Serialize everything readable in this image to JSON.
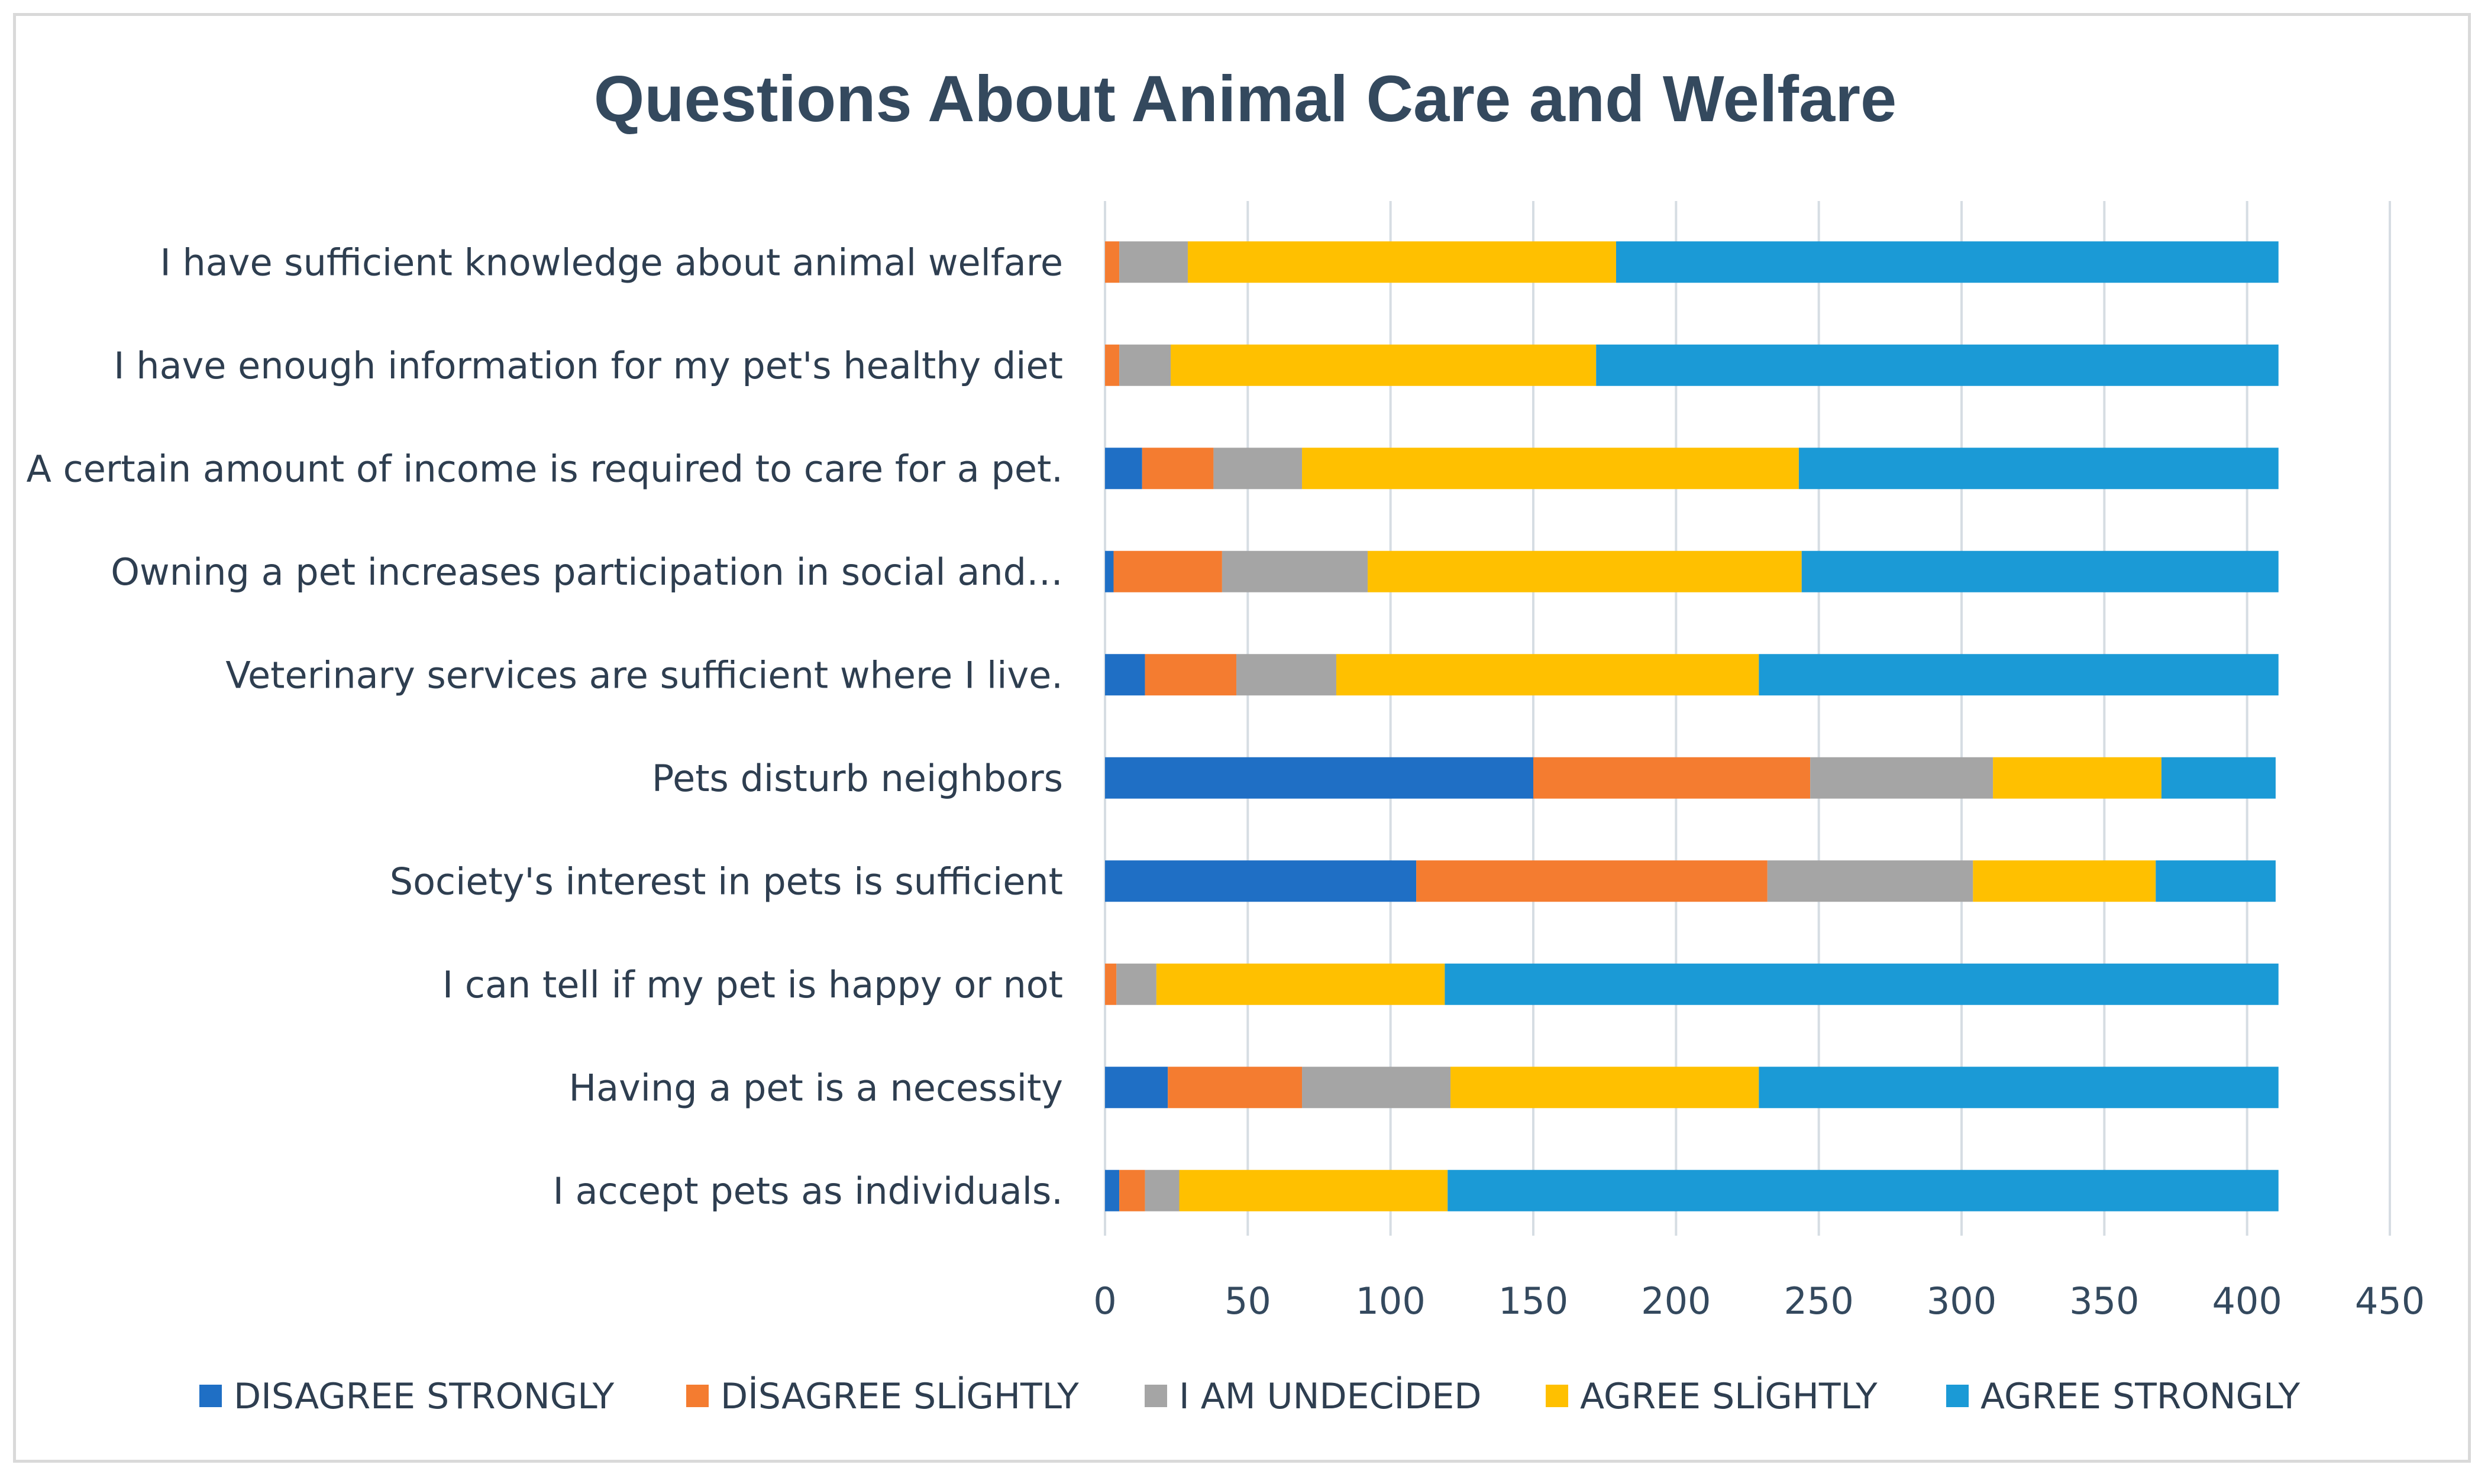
{
  "chart_data": {
    "type": "bar",
    "orientation": "horizontal",
    "stacked": true,
    "title": "Questions About Animal Care and Welfare",
    "xlabel": "",
    "ylabel": "",
    "xlim": [
      0,
      450
    ],
    "xticks": [
      0,
      50,
      100,
      150,
      200,
      250,
      300,
      350,
      400,
      450
    ],
    "grid": true,
    "legend_position": "bottom",
    "categories": [
      "I have sufficient knowledge about animal welfare",
      "I have enough information for my pet's healthy diet",
      "A certain amount of income is required to care for a pet.",
      "Owning a pet increases participation in social and…",
      "Veterinary services are sufficient where I live.",
      "Pets disturb neighbors",
      "Society's interest in pets is sufficient",
      "I can tell if my pet is happy or not",
      "Having a pet is a necessity",
      "I accept pets as individuals."
    ],
    "series": [
      {
        "name": "DISAGREE STRONGLY",
        "color": "#1f6fc5",
        "values": [
          0,
          0,
          13,
          3,
          14,
          150,
          109,
          0,
          22,
          5
        ]
      },
      {
        "name": "DİSAGREE SLİGHTLY",
        "color": "#f47c30",
        "values": [
          5,
          5,
          25,
          38,
          32,
          97,
          123,
          4,
          47,
          9
        ]
      },
      {
        "name": "I AM UNDECİDED",
        "color": "#a5a5a5",
        "values": [
          24,
          18,
          31,
          51,
          35,
          64,
          72,
          14,
          52,
          12
        ]
      },
      {
        "name": "AGREE SLİGHTLY",
        "color": "#ffc000",
        "values": [
          150,
          149,
          174,
          152,
          148,
          59,
          64,
          101,
          108,
          94
        ]
      },
      {
        "name": "AGREE STRONGLY",
        "color": "#1b9ad6",
        "values": [
          232,
          239,
          168,
          167,
          182,
          40,
          42,
          292,
          182,
          291
        ]
      }
    ]
  }
}
